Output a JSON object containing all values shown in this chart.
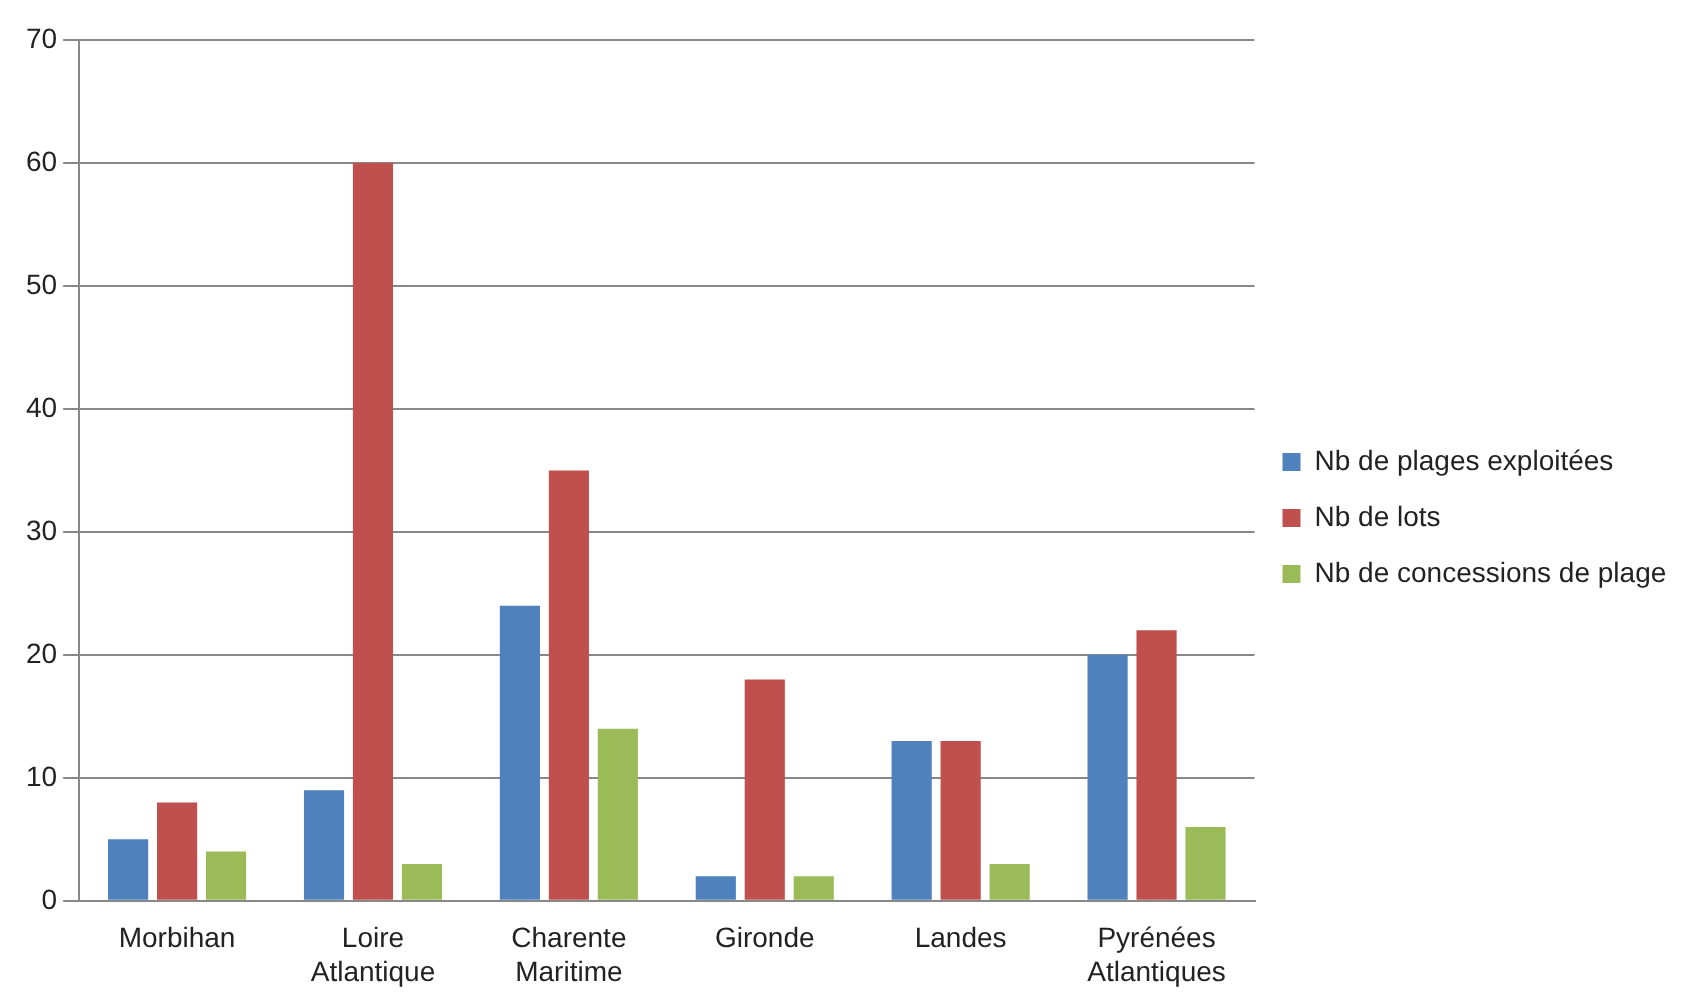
{
  "chart_data": {
    "type": "bar",
    "categories": [
      "Morbihan",
      "Loire Atlantique",
      "Charente Maritime",
      "Gironde",
      "Landes",
      "Pyrénées Atlantiques"
    ],
    "series": [
      {
        "name": "Nb de plages exploitées",
        "color": "#4f81bd",
        "values": [
          5,
          9,
          24,
          2,
          13,
          20
        ]
      },
      {
        "name": "Nb de lots",
        "color": "#c0504d",
        "values": [
          8,
          60,
          35,
          18,
          13,
          22
        ]
      },
      {
        "name": "Nb de concessions de plage",
        "color": "#9bbb59",
        "values": [
          4,
          3,
          14,
          2,
          3,
          6
        ]
      }
    ],
    "ylim": [
      0,
      70
    ],
    "yticks": [
      0,
      10,
      20,
      30,
      40,
      50,
      60,
      70
    ],
    "grid": "y",
    "legend": "right"
  }
}
